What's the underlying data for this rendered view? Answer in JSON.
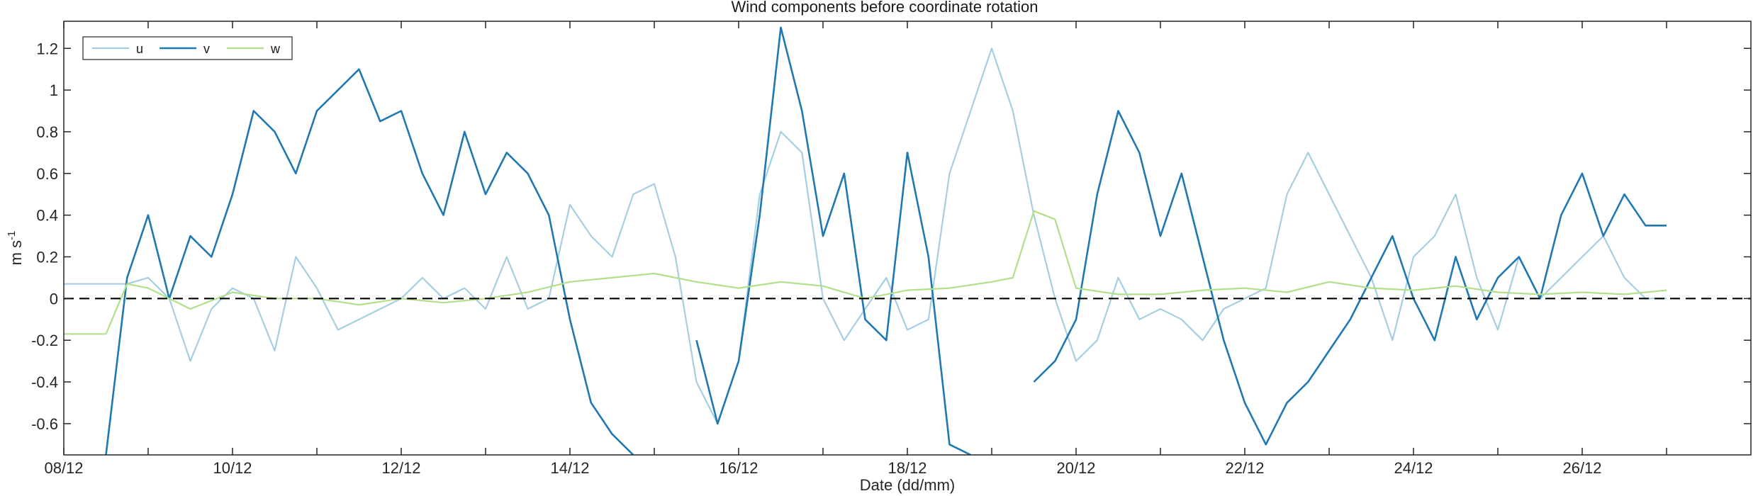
{
  "chart_data": {
    "type": "line",
    "title": "Wind components before coordinate rotation",
    "xlabel": "Date (dd/mm)",
    "ylabel_base": "m s",
    "ylabel_exponent": "-1",
    "xlim": [
      "2023-12-08",
      "2023-12-28T00:00"
    ],
    "ylim": [
      -0.75,
      1.33
    ],
    "x_ticks": [
      "08/12",
      "10/12",
      "12/12",
      "14/12",
      "16/12",
      "18/12",
      "20/12",
      "22/12",
      "24/12",
      "26/12"
    ],
    "y_ticks": [
      -0.6,
      -0.4,
      -0.2,
      0,
      0.2,
      0.4,
      0.6,
      0.8,
      1,
      1.2
    ],
    "y_tick_labels": [
      "-0.6",
      "-0.4",
      "-0.2",
      "0",
      "0.2",
      "0.4",
      "0.6",
      "0.8",
      "1",
      "1.2"
    ],
    "zero_line": "dashed",
    "grid": false,
    "legend_position": "top-left",
    "series": [
      {
        "name": "u",
        "color": "#a6cee3",
        "x": [
          "2023-12-08T00:00",
          "2023-12-08T18:00",
          "2023-12-09T00:00",
          "2023-12-09T06:00",
          "2023-12-09T12:00",
          "2023-12-09T18:00",
          "2023-12-10T00:00",
          "2023-12-10T06:00",
          "2023-12-10T12:00",
          "2023-12-10T18:00",
          "2023-12-11T00:00",
          "2023-12-11T06:00",
          "2023-12-11T12:00",
          "2023-12-11T18:00",
          "2023-12-12T00:00",
          "2023-12-12T06:00",
          "2023-12-12T12:00",
          "2023-12-12T18:00",
          "2023-12-13T00:00",
          "2023-12-13T06:00",
          "2023-12-13T12:00",
          "2023-12-13T18:00",
          "2023-12-14T00:00",
          "2023-12-14T06:00",
          "2023-12-14T12:00",
          "2023-12-14T18:00",
          "2023-12-15T00:00",
          "2023-12-15T06:00",
          "2023-12-15T12:00",
          "2023-12-15T18:00",
          "2023-12-16T00:00",
          "2023-12-16T06:00",
          "2023-12-16T12:00",
          "2023-12-16T18:00",
          "2023-12-17T00:00",
          "2023-12-17T06:00",
          "2023-12-17T12:00",
          "2023-12-17T18:00",
          "2023-12-18T00:00",
          "2023-12-18T06:00",
          "2023-12-18T12:00",
          "2023-12-18T18:00",
          "2023-12-19T00:00",
          "2023-12-19T06:00",
          "2023-12-19T12:00",
          "2023-12-19T18:00",
          "2023-12-20T00:00",
          "2023-12-20T06:00",
          "2023-12-20T12:00",
          "2023-12-20T18:00",
          "2023-12-21T00:00",
          "2023-12-21T06:00",
          "2023-12-21T12:00",
          "2023-12-21T18:00",
          "2023-12-22T00:00",
          "2023-12-22T06:00",
          "2023-12-22T12:00",
          "2023-12-22T18:00",
          "2023-12-23T00:00",
          "2023-12-23T06:00",
          "2023-12-23T12:00",
          "2023-12-23T18:00",
          "2023-12-24T00:00",
          "2023-12-24T06:00",
          "2023-12-24T12:00",
          "2023-12-24T18:00",
          "2023-12-25T00:00",
          "2023-12-25T06:00",
          "2023-12-25T12:00",
          "2023-12-25T18:00",
          "2023-12-26T00:00",
          "2023-12-26T06:00",
          "2023-12-26T12:00",
          "2023-12-26T18:00",
          "2023-12-27T00:00"
        ],
        "values": [
          0.07,
          0.07,
          0.1,
          0.0,
          -0.3,
          -0.05,
          0.05,
          0.0,
          -0.25,
          0.2,
          0.05,
          -0.15,
          -0.1,
          -0.05,
          0.0,
          0.1,
          0.0,
          0.05,
          -0.05,
          0.2,
          -0.05,
          0.0,
          0.45,
          0.3,
          0.2,
          0.5,
          0.55,
          0.2,
          -0.4,
          -0.6,
          -0.3,
          0.5,
          0.8,
          0.7,
          0.0,
          -0.2,
          -0.05,
          0.1,
          -0.15,
          -0.1,
          0.6,
          0.9,
          1.2,
          0.9,
          0.4,
          0.0,
          -0.3,
          -0.2,
          0.1,
          -0.1,
          -0.05,
          -0.1,
          -0.2,
          -0.05,
          0.0,
          0.05,
          0.5,
          0.7,
          0.5,
          0.3,
          0.1,
          -0.2,
          0.2,
          0.3,
          0.5,
          0.1,
          -0.15,
          0.2,
          0.0,
          0.1,
          0.2,
          0.3,
          0.1,
          0.0,
          0.0
        ]
      },
      {
        "name": "v",
        "color": "#1f78b4",
        "x": [
          "2023-12-08T00:00",
          "2023-12-08T12:00",
          "2023-12-08T18:00",
          "2023-12-09T00:00",
          "2023-12-09T06:00",
          "2023-12-09T12:00",
          "2023-12-09T18:00",
          "2023-12-10T00:00",
          "2023-12-10T06:00",
          "2023-12-10T12:00",
          "2023-12-10T18:00",
          "2023-12-11T00:00",
          "2023-12-11T06:00",
          "2023-12-11T12:00",
          "2023-12-11T18:00",
          "2023-12-12T00:00",
          "2023-12-12T06:00",
          "2023-12-12T12:00",
          "2023-12-12T18:00",
          "2023-12-13T00:00",
          "2023-12-13T06:00",
          "2023-12-13T12:00",
          "2023-12-13T18:00",
          "2023-12-14T00:00",
          "2023-12-14T06:00",
          "2023-12-14T12:00",
          "2023-12-14T18:00",
          "2023-12-15T00:00",
          "2023-12-15T06:00",
          "2023-12-15T12:00",
          "2023-12-15T18:00",
          "2023-12-16T00:00",
          "2023-12-16T06:00",
          "2023-12-16T12:00",
          "2023-12-16T18:00",
          "2023-12-17T00:00",
          "2023-12-17T06:00",
          "2023-12-17T12:00",
          "2023-12-17T18:00",
          "2023-12-18T00:00",
          "2023-12-18T06:00",
          "2023-12-18T12:00",
          "2023-12-18T18:00",
          "2023-12-19T00:00",
          "2023-12-19T06:00",
          "2023-12-19T12:00",
          "2023-12-19T18:00",
          "2023-12-20T00:00",
          "2023-12-20T06:00",
          "2023-12-20T12:00",
          "2023-12-20T18:00",
          "2023-12-21T00:00",
          "2023-12-21T06:00",
          "2023-12-21T12:00",
          "2023-12-21T18:00",
          "2023-12-22T00:00",
          "2023-12-22T06:00",
          "2023-12-22T12:00",
          "2023-12-22T18:00",
          "2023-12-23T00:00",
          "2023-12-23T06:00",
          "2023-12-23T12:00",
          "2023-12-23T18:00",
          "2023-12-24T00:00",
          "2023-12-24T06:00",
          "2023-12-24T12:00",
          "2023-12-24T18:00",
          "2023-12-25T00:00",
          "2023-12-25T06:00",
          "2023-12-25T12:00",
          "2023-12-25T18:00",
          "2023-12-26T00:00",
          "2023-12-26T06:00",
          "2023-12-26T12:00",
          "2023-12-26T18:00",
          "2023-12-27T00:00"
        ],
        "values": [
          null,
          -0.75,
          0.1,
          0.4,
          0.0,
          0.3,
          0.2,
          0.5,
          0.9,
          0.8,
          0.6,
          0.9,
          1.0,
          1.1,
          0.85,
          0.9,
          0.6,
          0.4,
          0.8,
          0.5,
          0.7,
          0.6,
          0.4,
          -0.1,
          -0.5,
          -0.65,
          -0.75,
          null,
          null,
          -0.2,
          -0.6,
          -0.3,
          0.4,
          1.3,
          0.9,
          0.3,
          0.6,
          -0.1,
          -0.2,
          0.7,
          0.2,
          -0.7,
          -0.75,
          null,
          null,
          -0.4,
          -0.3,
          -0.1,
          0.5,
          0.9,
          0.7,
          0.3,
          0.6,
          0.2,
          -0.2,
          -0.5,
          -0.7,
          -0.5,
          -0.4,
          -0.25,
          -0.1,
          0.1,
          0.3,
          0.0,
          -0.2,
          0.2,
          -0.1,
          0.1,
          0.2,
          0.0,
          0.4,
          0.6,
          0.3,
          0.5,
          0.35,
          0.35
        ]
      },
      {
        "name": "w",
        "color": "#b2df8a",
        "x": [
          "2023-12-08T00:00",
          "2023-12-08T12:00",
          "2023-12-08T18:00",
          "2023-12-09T00:00",
          "2023-12-09T12:00",
          "2023-12-10T00:00",
          "2023-12-10T12:00",
          "2023-12-11T00:00",
          "2023-12-11T12:00",
          "2023-12-12T00:00",
          "2023-12-12T12:00",
          "2023-12-13T00:00",
          "2023-12-13T12:00",
          "2023-12-14T00:00",
          "2023-12-14T12:00",
          "2023-12-15T00:00",
          "2023-12-15T12:00",
          "2023-12-16T00:00",
          "2023-12-16T12:00",
          "2023-12-17T00:00",
          "2023-12-17T12:00",
          "2023-12-18T00:00",
          "2023-12-18T12:00",
          "2023-12-19T00:00",
          "2023-12-19T06:00",
          "2023-12-19T12:00",
          "2023-12-19T18:00",
          "2023-12-20T00:00",
          "2023-12-20T12:00",
          "2023-12-21T00:00",
          "2023-12-21T12:00",
          "2023-12-22T00:00",
          "2023-12-22T12:00",
          "2023-12-23T00:00",
          "2023-12-23T12:00",
          "2023-12-24T00:00",
          "2023-12-24T12:00",
          "2023-12-25T00:00",
          "2023-12-25T12:00",
          "2023-12-26T00:00",
          "2023-12-26T12:00",
          "2023-12-27T00:00"
        ],
        "values": [
          -0.17,
          -0.17,
          0.07,
          0.05,
          -0.05,
          0.03,
          0.0,
          0.0,
          -0.03,
          0.0,
          -0.02,
          0.0,
          0.03,
          0.08,
          0.1,
          0.12,
          0.08,
          0.05,
          0.08,
          0.06,
          0.0,
          0.04,
          0.05,
          0.08,
          0.1,
          0.42,
          0.38,
          0.05,
          0.02,
          0.02,
          0.04,
          0.05,
          0.03,
          0.08,
          0.05,
          0.04,
          0.06,
          0.03,
          0.02,
          0.03,
          0.02,
          0.04
        ]
      }
    ]
  }
}
